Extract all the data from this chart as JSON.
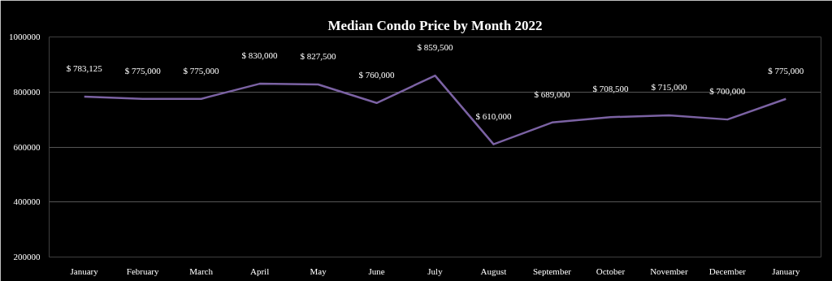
{
  "chart_data": {
    "type": "line",
    "title": "Median Condo Price by Month 2022",
    "categories": [
      "January",
      "February",
      "March",
      "April",
      "May",
      "June",
      "July",
      "August",
      "September",
      "October",
      "November",
      "December",
      "January"
    ],
    "series": [
      {
        "color": "#7b62a3",
        "values": [
          783125,
          775000,
          775000,
          830000,
          827500,
          760000,
          859500,
          610000,
          689000,
          708500,
          715000,
          700000,
          775000
        ],
        "value_labels": [
          "$ 783,125",
          "$ 775,000",
          "$ 775,000",
          "$ 830,000",
          "$ 827,500",
          "$ 760,000",
          "$ 859,500",
          "$ 610,000",
          "$ 689,000",
          "$ 708,500",
          "$ 715,000",
          "$ 700,000",
          "$ 775,000"
        ]
      }
    ],
    "ylim": [
      200000,
      1000000
    ],
    "yticks": [
      200000,
      400000,
      600000,
      800000,
      1000000
    ],
    "grid": "y",
    "marker": "none",
    "line_style": "solid"
  }
}
